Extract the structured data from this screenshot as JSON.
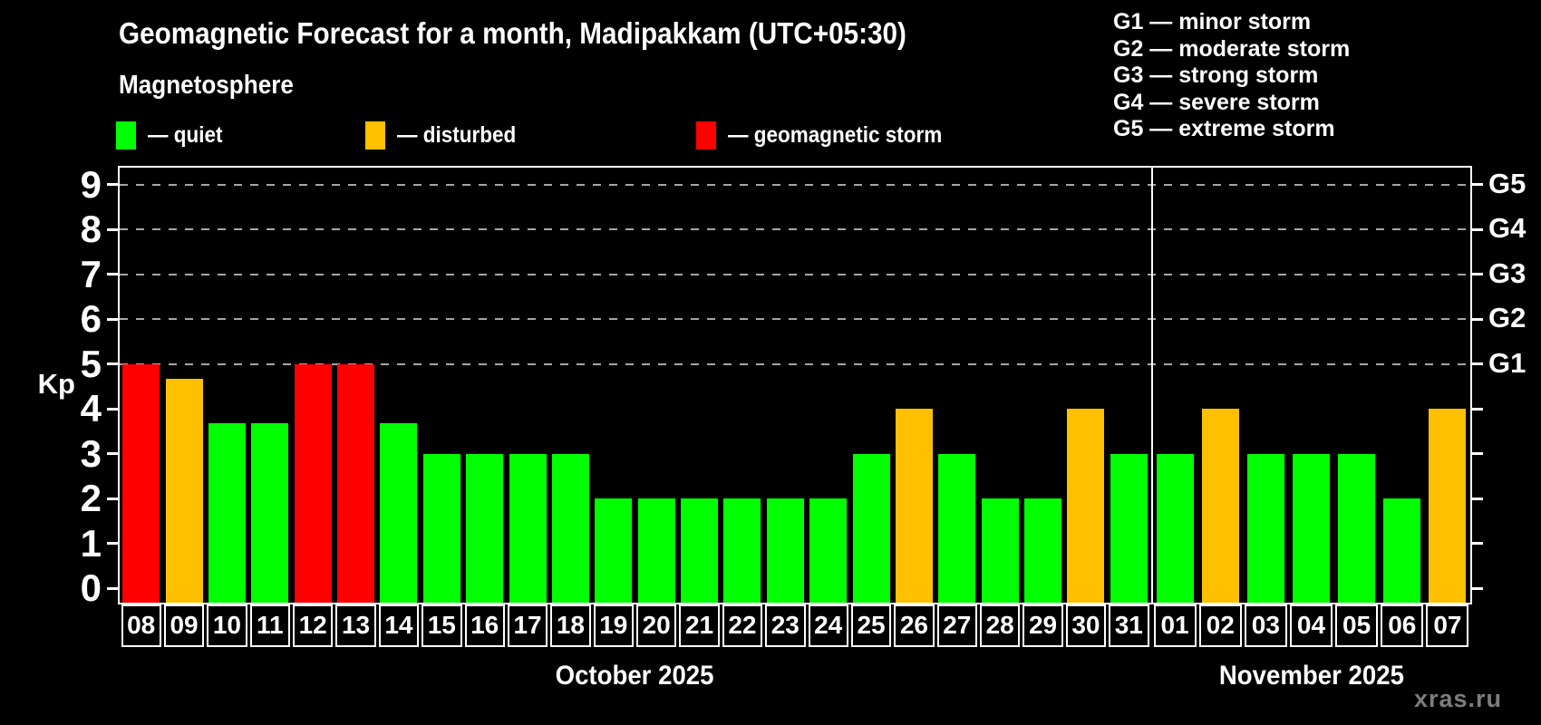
{
  "header": {
    "title": "Geomagnetic Forecast for a month, Madipakkam (UTC+05:30)",
    "subtitle": "Magnetosphere"
  },
  "kp_legend": [
    {
      "label": "— quiet",
      "status": "quiet"
    },
    {
      "label": "— disturbed",
      "status": "disturbed"
    },
    {
      "label": "— geomagnetic storm",
      "status": "storm"
    }
  ],
  "storm_scale_legend": [
    "G1 — minor storm",
    "G2 — moderate storm",
    "G3 — strong storm",
    "G4 — severe storm",
    "G5 — extreme storm"
  ],
  "watermark": "xras.ru",
  "colors": {
    "quiet": "#00ff00",
    "disturbed": "#ffc000",
    "storm": "#ff0000",
    "grid": "#a6a6a6",
    "axis": "#ffffff",
    "background": "#000000"
  },
  "chart_data": {
    "type": "bar",
    "ylabel": "Kp",
    "ylim": [
      0,
      9.4
    ],
    "yticks": [
      0,
      1,
      2,
      3,
      4,
      5,
      6,
      7,
      8,
      9
    ],
    "gridlines_at": [
      5,
      6,
      7,
      8,
      9
    ],
    "grid_style": "dashed",
    "right_axis": [
      {
        "kp": 5,
        "label": "G1"
      },
      {
        "kp": 6,
        "label": "G2"
      },
      {
        "kp": 7,
        "label": "G3"
      },
      {
        "kp": 8,
        "label": "G4"
      },
      {
        "kp": 9,
        "label": "G5"
      }
    ],
    "separator_frac": 0.7638,
    "months": [
      {
        "label": "October 2025",
        "days": [
          {
            "day": "08",
            "kp": 5,
            "status": "storm"
          },
          {
            "day": "09",
            "kp": 4.67,
            "status": "disturbed"
          },
          {
            "day": "10",
            "kp": 3.67,
            "status": "quiet"
          },
          {
            "day": "11",
            "kp": 3.67,
            "status": "quiet"
          },
          {
            "day": "12",
            "kp": 5,
            "status": "storm"
          },
          {
            "day": "13",
            "kp": 5,
            "status": "storm"
          },
          {
            "day": "14",
            "kp": 3.67,
            "status": "quiet"
          },
          {
            "day": "15",
            "kp": 3,
            "status": "quiet"
          },
          {
            "day": "16",
            "kp": 3,
            "status": "quiet"
          },
          {
            "day": "17",
            "kp": 3,
            "status": "quiet"
          },
          {
            "day": "18",
            "kp": 3,
            "status": "quiet"
          },
          {
            "day": "19",
            "kp": 2,
            "status": "quiet"
          },
          {
            "day": "20",
            "kp": 2,
            "status": "quiet"
          },
          {
            "day": "21",
            "kp": 2,
            "status": "quiet"
          },
          {
            "day": "22",
            "kp": 2,
            "status": "quiet"
          },
          {
            "day": "23",
            "kp": 2,
            "status": "quiet"
          },
          {
            "day": "24",
            "kp": 2,
            "status": "quiet"
          },
          {
            "day": "25",
            "kp": 3,
            "status": "quiet"
          },
          {
            "day": "26",
            "kp": 4,
            "status": "disturbed"
          },
          {
            "day": "27",
            "kp": 3,
            "status": "quiet"
          },
          {
            "day": "28",
            "kp": 2,
            "status": "quiet"
          },
          {
            "day": "29",
            "kp": 2,
            "status": "quiet"
          },
          {
            "day": "30",
            "kp": 4,
            "status": "disturbed"
          },
          {
            "day": "31",
            "kp": 3,
            "status": "quiet"
          }
        ]
      },
      {
        "label": "November 2025",
        "days": [
          {
            "day": "01",
            "kp": 3,
            "status": "quiet"
          },
          {
            "day": "02",
            "kp": 4,
            "status": "disturbed"
          },
          {
            "day": "03",
            "kp": 3,
            "status": "quiet"
          },
          {
            "day": "04",
            "kp": 3,
            "status": "quiet"
          },
          {
            "day": "05",
            "kp": 3,
            "status": "quiet"
          },
          {
            "day": "06",
            "kp": 2,
            "status": "quiet"
          },
          {
            "day": "07",
            "kp": 4,
            "status": "disturbed"
          }
        ]
      }
    ]
  }
}
